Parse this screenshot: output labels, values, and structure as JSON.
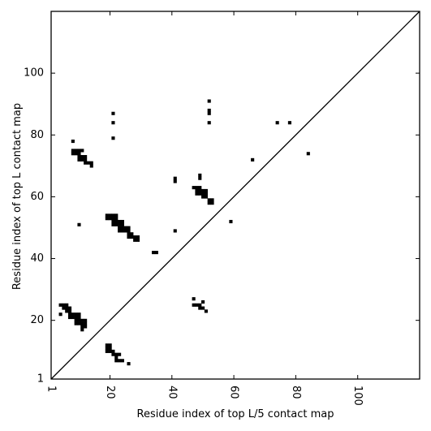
{
  "chart_data": {
    "type": "heatmap",
    "title": "",
    "xlabel": "Residue index of top L/5 contact map",
    "ylabel": "Residue index of top L contact map",
    "xlim": [
      1,
      120
    ],
    "ylim": [
      1,
      120
    ],
    "xticks": [
      1,
      20,
      40,
      60,
      80,
      100
    ],
    "yticks": [
      1,
      20,
      40,
      60,
      80,
      100
    ],
    "xtick_labels": [
      "1",
      "20",
      "40",
      "60",
      "80",
      "100"
    ],
    "ytick_labels": [
      "1",
      "20",
      "40",
      "60",
      "80",
      "100"
    ],
    "grid": false,
    "diagonal": true,
    "cell_color": "#000000",
    "upper_triangle_cells": [
      [
        8,
        78
      ],
      [
        8,
        75
      ],
      [
        9,
        75
      ],
      [
        10,
        75
      ],
      [
        11,
        75
      ],
      [
        8,
        74
      ],
      [
        9,
        74
      ],
      [
        10,
        74
      ],
      [
        10,
        73
      ],
      [
        11,
        73
      ],
      [
        12,
        73
      ],
      [
        10,
        72
      ],
      [
        11,
        72
      ],
      [
        12,
        72
      ],
      [
        12,
        71
      ],
      [
        13,
        71
      ],
      [
        14,
        71
      ],
      [
        14,
        70
      ],
      [
        10,
        51
      ],
      [
        19,
        54
      ],
      [
        20,
        54
      ],
      [
        21,
        54
      ],
      [
        22,
        54
      ],
      [
        19,
        53
      ],
      [
        20,
        53
      ],
      [
        21,
        53
      ],
      [
        22,
        53
      ],
      [
        21,
        52
      ],
      [
        22,
        52
      ],
      [
        23,
        52
      ],
      [
        24,
        52
      ],
      [
        21,
        51
      ],
      [
        22,
        51
      ],
      [
        23,
        51
      ],
      [
        24,
        51
      ],
      [
        23,
        50
      ],
      [
        24,
        50
      ],
      [
        25,
        50
      ],
      [
        26,
        50
      ],
      [
        23,
        49
      ],
      [
        24,
        49
      ],
      [
        25,
        49
      ],
      [
        26,
        49
      ],
      [
        26,
        48
      ],
      [
        27,
        48
      ],
      [
        26,
        47
      ],
      [
        27,
        47
      ],
      [
        28,
        47
      ],
      [
        29,
        47
      ],
      [
        28,
        46
      ],
      [
        29,
        46
      ],
      [
        21,
        87
      ],
      [
        21,
        84
      ],
      [
        21,
        79
      ],
      [
        34,
        42
      ],
      [
        35,
        42
      ],
      [
        41,
        66
      ],
      [
        41,
        65
      ],
      [
        41,
        49
      ],
      [
        47,
        63
      ],
      [
        48,
        63
      ],
      [
        49,
        63
      ],
      [
        48,
        62
      ],
      [
        49,
        62
      ],
      [
        50,
        62
      ],
      [
        51,
        62
      ],
      [
        48,
        61
      ],
      [
        49,
        61
      ],
      [
        50,
        61
      ],
      [
        51,
        61
      ],
      [
        50,
        60
      ],
      [
        51,
        60
      ],
      [
        52,
        59
      ],
      [
        53,
        59
      ],
      [
        52,
        58
      ],
      [
        53,
        58
      ],
      [
        49,
        67
      ],
      [
        49,
        66
      ],
      [
        52,
        91
      ],
      [
        52,
        88
      ],
      [
        52,
        87
      ],
      [
        52,
        84
      ],
      [
        59,
        52
      ],
      [
        66,
        72
      ],
      [
        74,
        84
      ],
      [
        78,
        84
      ],
      [
        84,
        74
      ]
    ],
    "lower_triangle_cells": [
      [
        4,
        25
      ],
      [
        5,
        25
      ],
      [
        6,
        25
      ],
      [
        5,
        24
      ],
      [
        6,
        24
      ],
      [
        7,
        24
      ],
      [
        6,
        23
      ],
      [
        7,
        23
      ],
      [
        4,
        22
      ],
      [
        7,
        22
      ],
      [
        8,
        22
      ],
      [
        9,
        22
      ],
      [
        10,
        22
      ],
      [
        7,
        21
      ],
      [
        8,
        21
      ],
      [
        9,
        21
      ],
      [
        10,
        21
      ],
      [
        9,
        20
      ],
      [
        10,
        20
      ],
      [
        11,
        20
      ],
      [
        12,
        20
      ],
      [
        9,
        19
      ],
      [
        10,
        19
      ],
      [
        11,
        19
      ],
      [
        12,
        19
      ],
      [
        11,
        18
      ],
      [
        12,
        18
      ],
      [
        11,
        17
      ],
      [
        19,
        12
      ],
      [
        20,
        12
      ],
      [
        19,
        11
      ],
      [
        20,
        11
      ],
      [
        19,
        10
      ],
      [
        20,
        10
      ],
      [
        21,
        10
      ],
      [
        21,
        9
      ],
      [
        22,
        9
      ],
      [
        23,
        9
      ],
      [
        22,
        8
      ],
      [
        22,
        7
      ],
      [
        23,
        7
      ],
      [
        24,
        7
      ],
      [
        26,
        6
      ],
      [
        47,
        27
      ],
      [
        47,
        25
      ],
      [
        48,
        25
      ],
      [
        49,
        25
      ],
      [
        50,
        26
      ],
      [
        49,
        24
      ],
      [
        50,
        24
      ],
      [
        51,
        23
      ]
    ]
  }
}
